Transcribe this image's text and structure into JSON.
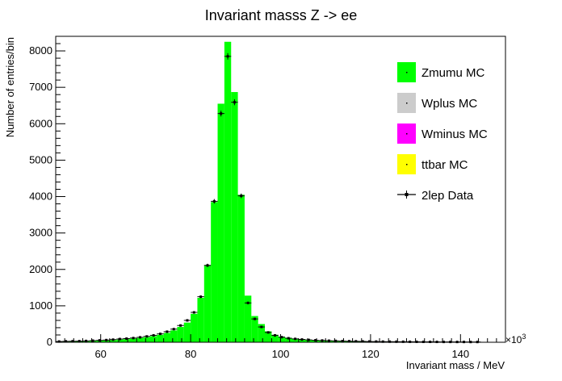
{
  "chart_data": {
    "type": "bar",
    "title": "Invariant masss Z -> ee",
    "xlabel": "Invariant mass / MeV",
    "ylabel": "Number of entries/bin",
    "x_exponent_label": "×10",
    "x_exponent_power": "3",
    "xlim": [
      50,
      150
    ],
    "ylim": [
      0,
      8400
    ],
    "x_ticks": [
      60,
      80,
      100,
      120,
      140
    ],
    "y_ticks": [
      0,
      1000,
      2000,
      3000,
      4000,
      5000,
      6000,
      7000,
      8000
    ],
    "bin_edges_start": 50,
    "bin_width": 1.5,
    "series": [
      {
        "name": "Zmumu MC",
        "style": "filled-bars",
        "color": "#00ff00",
        "values": [
          15,
          18,
          20,
          24,
          28,
          35,
          42,
          50,
          60,
          72,
          85,
          100,
          118,
          140,
          168,
          205,
          255,
          325,
          420,
          540,
          780,
          1220,
          2120,
          3850,
          6550,
          8250,
          6870,
          4050,
          1280,
          720,
          500,
          300,
          205,
          155,
          125,
          100,
          82,
          68,
          58,
          50,
          44,
          38,
          34,
          30,
          27,
          24,
          22,
          20,
          18,
          16,
          15,
          14,
          13,
          12,
          11,
          10,
          10,
          9,
          8,
          8,
          7,
          7,
          7
        ]
      },
      {
        "name": "Wplus MC",
        "style": "filled-bars",
        "color": "#cccccc",
        "values": []
      },
      {
        "name": "Wminus MC",
        "style": "filled-bars",
        "color": "#ff00ff",
        "values": []
      },
      {
        "name": "ttbar MC",
        "style": "filled-bars",
        "color": "#ffff00",
        "values": []
      },
      {
        "name": "2lep Data",
        "style": "points-with-error-bars",
        "color": "#000000",
        "values": [
          20,
          25,
          28,
          30,
          36,
          44,
          52,
          60,
          72,
          88,
          100,
          115,
          135,
          160,
          190,
          230,
          290,
          360,
          460,
          600,
          820,
          1250,
          2110,
          3870,
          6280,
          7850,
          6590,
          4020,
          1080,
          640,
          420,
          270,
          190,
          140,
          110,
          92,
          76,
          64,
          54,
          48,
          42,
          37,
          33,
          29,
          26,
          24,
          21,
          19,
          17,
          16,
          15,
          14,
          13,
          12,
          11,
          11,
          10,
          9,
          9,
          8,
          8,
          7,
          7
        ]
      }
    ],
    "legend_position": "top-right",
    "grid": false
  }
}
